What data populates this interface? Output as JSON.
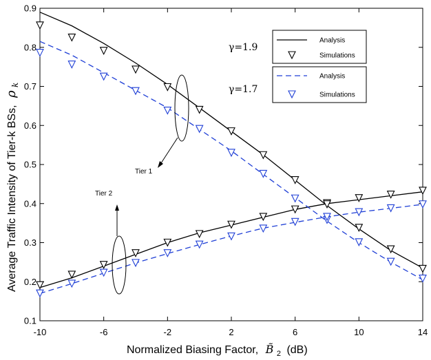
{
  "chart_data": {
    "type": "line",
    "xlabel": "Normalized Biasing Factor,",
    "xlabel_symbol": "B̃",
    "xlabel_subscript": "2",
    "xlabel_unit": "(dB)",
    "ylabel": "Average Traffic Intensity of Tier-k BSs,",
    "ylabel_symbol": "ρ",
    "ylabel_subscript": "k",
    "xlim": [
      -10,
      14
    ],
    "ylim": [
      0.1,
      0.9
    ],
    "xticks": [
      -10,
      -6,
      -2,
      2,
      6,
      10,
      14
    ],
    "xtick_labels": [
      "-10",
      "-6",
      "-2",
      "2",
      "6",
      "10",
      "14"
    ],
    "yticks": [
      0.1,
      0.2,
      0.3,
      0.4,
      0.5,
      0.6,
      0.7,
      0.8,
      0.9
    ],
    "ytick_labels": [
      "0.1",
      "0.2",
      "0.3",
      "0.4",
      "0.5",
      "0.6",
      "0.7",
      "0.8",
      "0.9"
    ],
    "series": [
      {
        "name": "Analysis",
        "group": "γ=1.9, Tier 1",
        "kind": "line",
        "style": "solid",
        "color": "#000000",
        "x": [
          -10,
          -8,
          -6,
          -4,
          -2,
          0,
          2,
          4,
          6,
          8,
          10,
          12,
          14
        ],
        "values": [
          0.89,
          0.855,
          0.81,
          0.76,
          0.705,
          0.645,
          0.585,
          0.525,
          0.46,
          0.395,
          0.335,
          0.28,
          0.235
        ]
      },
      {
        "name": "Simulations",
        "group": "γ=1.9, Tier 1",
        "kind": "markers",
        "marker": "triangle-down",
        "color": "#000000",
        "x": [
          -10,
          -8,
          -6,
          -4,
          -2,
          0,
          2,
          4,
          6,
          8,
          10,
          12,
          14
        ],
        "values": [
          0.858,
          0.827,
          0.793,
          0.745,
          0.7,
          0.642,
          0.587,
          0.526,
          0.462,
          0.403,
          0.34,
          0.285,
          0.235
        ]
      },
      {
        "name": "Analysis",
        "group": "γ=1.9, Tier 2",
        "kind": "line",
        "style": "solid",
        "color": "#000000",
        "x": [
          -10,
          -8,
          -6,
          -4,
          -2,
          0,
          2,
          4,
          6,
          8,
          10,
          12,
          14
        ],
        "values": [
          0.185,
          0.21,
          0.24,
          0.27,
          0.3,
          0.325,
          0.345,
          0.365,
          0.385,
          0.4,
          0.41,
          0.42,
          0.43
        ]
      },
      {
        "name": "Simulations",
        "group": "γ=1.9, Tier 2",
        "kind": "markers",
        "marker": "triangle-down",
        "color": "#000000",
        "x": [
          -10,
          -8,
          -6,
          -4,
          -2,
          0,
          2,
          4,
          6,
          8,
          10,
          12,
          14
        ],
        "values": [
          0.193,
          0.22,
          0.245,
          0.275,
          0.302,
          0.324,
          0.348,
          0.368,
          0.387,
          0.4,
          0.416,
          0.425,
          0.435
        ]
      },
      {
        "name": "Analysis",
        "group": "γ=1.7, Tier 1",
        "kind": "line",
        "style": "dashed",
        "color": "#1f3fd6",
        "x": [
          -10,
          -8,
          -6,
          -4,
          -2,
          0,
          2,
          4,
          6,
          8,
          10,
          12,
          14
        ],
        "values": [
          0.815,
          0.78,
          0.735,
          0.69,
          0.645,
          0.59,
          0.535,
          0.475,
          0.415,
          0.355,
          0.3,
          0.25,
          0.205
        ]
      },
      {
        "name": "Simulations",
        "group": "γ=1.7, Tier 1",
        "kind": "markers",
        "marker": "triangle-down",
        "color": "#1f3fd6",
        "x": [
          -10,
          -8,
          -6,
          -4,
          -2,
          0,
          2,
          4,
          6,
          8,
          10,
          12,
          14
        ],
        "values": [
          0.788,
          0.758,
          0.727,
          0.69,
          0.64,
          0.593,
          0.532,
          0.478,
          0.415,
          0.36,
          0.303,
          0.253,
          0.21
        ]
      },
      {
        "name": "Analysis",
        "group": "γ=1.7, Tier 2",
        "kind": "line",
        "style": "dashed",
        "color": "#1f3fd6",
        "x": [
          -10,
          -8,
          -6,
          -4,
          -2,
          0,
          2,
          4,
          6,
          8,
          10,
          12,
          14
        ],
        "values": [
          0.17,
          0.195,
          0.222,
          0.248,
          0.272,
          0.295,
          0.317,
          0.337,
          0.352,
          0.366,
          0.378,
          0.388,
          0.398
        ]
      },
      {
        "name": "Simulations",
        "group": "γ=1.7, Tier 2",
        "kind": "markers",
        "marker": "triangle-down",
        "color": "#1f3fd6",
        "x": [
          -10,
          -8,
          -6,
          -4,
          -2,
          0,
          2,
          4,
          6,
          8,
          10,
          12,
          14
        ],
        "values": [
          0.172,
          0.197,
          0.225,
          0.25,
          0.275,
          0.297,
          0.318,
          0.338,
          0.355,
          0.368,
          0.38,
          0.39,
          0.4
        ]
      }
    ],
    "legend": {
      "placement": "top-right",
      "entries": [
        {
          "label": "Analysis",
          "style": "solid",
          "color": "#000000",
          "marker": "none"
        },
        {
          "label": "Simulations",
          "style": "none",
          "color": "#000000",
          "marker": "triangle-down"
        },
        {
          "label": "Analysis",
          "style": "dashed",
          "color": "#1f3fd6",
          "marker": "none"
        },
        {
          "label": "Simulations",
          "style": "none",
          "color": "#1f3fd6",
          "marker": "triangle-down"
        }
      ]
    },
    "annotations": [
      {
        "text": "γ=1.9"
      },
      {
        "text": "γ=1.7"
      },
      {
        "text": "Tier 1"
      },
      {
        "text": "Tier 2"
      }
    ]
  }
}
